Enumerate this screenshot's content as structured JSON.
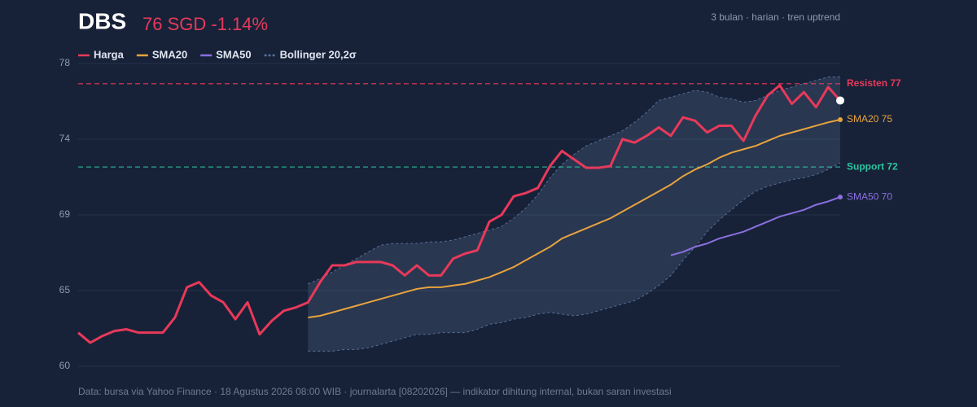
{
  "chart_data": {
    "type": "line",
    "title": "DBS",
    "subtitle": "76 SGD -1.14%",
    "note": "3 bulan · harian · tren uptrend",
    "source": "Data: bursa via Yahoo Finance · 18 Agustus 2026 08:00 WIB · journalarta [08202026] — indikator dihitung internal, bukan saran investasi",
    "ylim": [
      60,
      78
    ],
    "yticks": [
      60,
      {
        "value": 64.5,
        "label": "65"
      },
      69,
      {
        "value": 73.5,
        "label": "74"
      },
      78
    ],
    "grid": true,
    "series": [
      {
        "name": "Harga",
        "color": "#e8395a",
        "values": [
          62.0,
          61.4,
          61.8,
          62.1,
          62.2,
          62.0,
          62.0,
          62.0,
          62.9,
          64.7,
          65.0,
          64.2,
          63.8,
          62.8,
          63.8,
          61.9,
          62.7,
          63.3,
          63.5,
          63.8,
          65.0,
          66.0,
          66.0,
          66.2,
          66.2,
          66.2,
          66.0,
          65.4,
          66.0,
          65.4,
          65.4,
          66.4,
          66.7,
          66.9,
          68.6,
          69.0,
          70.1,
          70.3,
          70.6,
          71.9,
          72.8,
          72.3,
          71.8,
          71.8,
          71.9,
          73.5,
          73.3,
          73.7,
          74.2,
          73.7,
          74.8,
          74.6,
          73.9,
          74.3,
          74.3,
          73.4,
          74.9,
          76.1,
          76.7,
          75.6,
          76.3,
          75.4,
          76.6,
          75.8
        ]
      },
      {
        "name": "SMA20",
        "color": "#e8a33d",
        "end_label": "SMA20 75",
        "values": [
          null,
          null,
          null,
          null,
          null,
          null,
          null,
          null,
          null,
          null,
          null,
          null,
          null,
          null,
          null,
          null,
          null,
          null,
          null,
          62.9,
          63.0,
          63.2,
          63.4,
          63.6,
          63.8,
          64.0,
          64.2,
          64.4,
          64.6,
          64.7,
          64.7,
          64.8,
          64.9,
          65.1,
          65.3,
          65.6,
          65.9,
          66.3,
          66.7,
          67.1,
          67.6,
          67.9,
          68.2,
          68.5,
          68.8,
          69.2,
          69.6,
          70.0,
          70.4,
          70.8,
          71.3,
          71.7,
          72.0,
          72.4,
          72.7,
          72.9,
          73.1,
          73.4,
          73.7,
          73.9,
          74.1,
          74.3,
          74.5,
          74.66
        ]
      },
      {
        "name": "SMA50",
        "color": "#8b6fe0",
        "end_label": "SMA50 70",
        "values": [
          null,
          null,
          null,
          null,
          null,
          null,
          null,
          null,
          null,
          null,
          null,
          null,
          null,
          null,
          null,
          null,
          null,
          null,
          null,
          null,
          null,
          null,
          null,
          null,
          null,
          null,
          null,
          null,
          null,
          null,
          null,
          null,
          null,
          null,
          null,
          null,
          null,
          null,
          null,
          null,
          null,
          null,
          null,
          null,
          null,
          null,
          null,
          null,
          null,
          66.6,
          66.8,
          67.1,
          67.3,
          67.6,
          67.8,
          68.0,
          68.3,
          68.6,
          68.9,
          69.1,
          69.3,
          69.6,
          69.8,
          70.06
        ]
      }
    ],
    "band": {
      "name": "Bollinger 20,2σ",
      "color": "#5a6e94",
      "upper": [
        null,
        null,
        null,
        null,
        null,
        null,
        null,
        null,
        null,
        null,
        null,
        null,
        null,
        null,
        null,
        null,
        null,
        null,
        null,
        64.9,
        65.2,
        65.6,
        66.0,
        66.4,
        66.8,
        67.2,
        67.3,
        67.3,
        67.3,
        67.4,
        67.4,
        67.5,
        67.7,
        67.9,
        68.1,
        68.3,
        68.8,
        69.4,
        70.2,
        71.2,
        72.0,
        72.6,
        73.1,
        73.4,
        73.7,
        74.0,
        74.5,
        75.1,
        75.8,
        76.0,
        76.2,
        76.4,
        76.3,
        76.0,
        75.9,
        75.7,
        75.8,
        76.1,
        76.4,
        76.6,
        76.8,
        77.0,
        77.2,
        77.2
      ],
      "lower": [
        null,
        null,
        null,
        null,
        null,
        null,
        null,
        null,
        null,
        null,
        null,
        null,
        null,
        null,
        null,
        null,
        null,
        null,
        null,
        60.9,
        60.9,
        60.9,
        61.0,
        61.0,
        61.1,
        61.3,
        61.5,
        61.7,
        61.9,
        61.9,
        62.0,
        62.0,
        62.0,
        62.2,
        62.5,
        62.6,
        62.8,
        62.9,
        63.1,
        63.2,
        63.1,
        63.0,
        63.1,
        63.3,
        63.5,
        63.7,
        63.9,
        64.3,
        64.8,
        65.4,
        66.3,
        67.1,
        68.0,
        68.7,
        69.3,
        69.9,
        70.4,
        70.7,
        70.9,
        71.1,
        71.2,
        71.4,
        71.7,
        72.1
      ]
    },
    "levels": [
      {
        "label": "Resisten 77",
        "value": 76.8,
        "color": "#e8395a"
      },
      {
        "label": "Support 72",
        "value": 71.85,
        "color": "#2ec4a0"
      }
    ]
  }
}
